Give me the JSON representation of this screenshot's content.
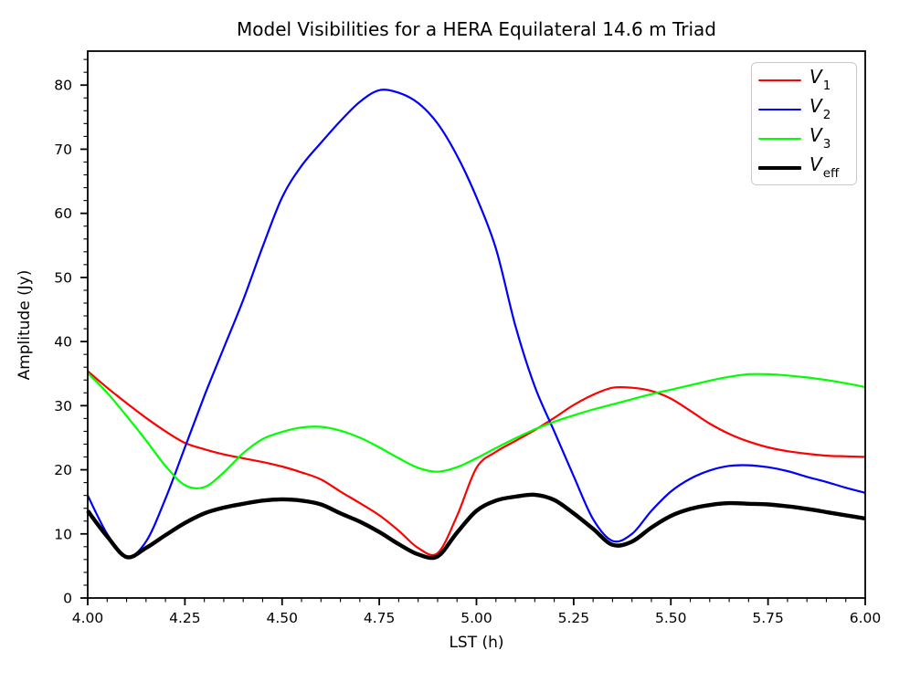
{
  "chart_data": {
    "type": "line",
    "title": "Model Visibilities for a HERA Equilateral 14.6 m Triad",
    "xlabel": "LST (h)",
    "ylabel": "Amplitude (Jy)",
    "xlim": [
      4.0,
      6.0
    ],
    "ylim": [
      0,
      85.3
    ],
    "grid": false,
    "legend_position": "upper right",
    "x_major_ticks": [
      4.0,
      4.25,
      4.5,
      4.75,
      5.0,
      5.25,
      5.5,
      5.75,
      6.0
    ],
    "x_tick_labels": [
      "4.00",
      "4.25",
      "4.50",
      "4.75",
      "5.00",
      "5.25",
      "5.50",
      "5.75",
      "6.00"
    ],
    "x_minor_step": 0.05,
    "y_major_ticks": [
      0,
      10,
      20,
      30,
      40,
      50,
      60,
      70,
      80
    ],
    "y_tick_labels": [
      "0",
      "10",
      "20",
      "30",
      "40",
      "50",
      "60",
      "70",
      "80"
    ],
    "y_minor_step": 2,
    "x": [
      4.0,
      4.05,
      4.1,
      4.15,
      4.2,
      4.25,
      4.3,
      4.35,
      4.4,
      4.45,
      4.5,
      4.55,
      4.6,
      4.65,
      4.7,
      4.75,
      4.8,
      4.85,
      4.9,
      4.95,
      5.0,
      5.05,
      5.1,
      5.15,
      5.2,
      5.25,
      5.3,
      5.35,
      5.4,
      5.45,
      5.5,
      5.55,
      5.6,
      5.65,
      5.7,
      5.75,
      5.8,
      5.85,
      5.9,
      5.95,
      6.0
    ],
    "series": [
      {
        "name": "v1",
        "label_main": "V",
        "label_sub": "1",
        "color": "#ff0000",
        "width": 2.2,
        "values": [
          35.4,
          32.8,
          30.4,
          28.1,
          26.0,
          24.2,
          23.2,
          22.4,
          21.8,
          21.2,
          20.5,
          19.6,
          18.5,
          16.6,
          14.8,
          12.9,
          10.5,
          7.8,
          7.0,
          12.8,
          20.3,
          22.8,
          24.5,
          26.2,
          28.1,
          30.1,
          31.7,
          32.8,
          32.8,
          32.3,
          31.1,
          29.2,
          27.2,
          25.6,
          24.4,
          23.5,
          22.9,
          22.5,
          22.2,
          22.1,
          22.0
        ]
      },
      {
        "name": "v2",
        "label_main": "V",
        "label_sub": "2",
        "color": "#0000ff",
        "width": 2.2,
        "values": [
          16.0,
          10.0,
          6.4,
          8.8,
          15.5,
          23.5,
          31.5,
          39.0,
          46.5,
          54.8,
          62.5,
          67.4,
          71.0,
          74.4,
          77.4,
          79.2,
          78.8,
          77.2,
          74.0,
          69.0,
          62.5,
          54.5,
          42.5,
          33.0,
          26.0,
          19.0,
          12.3,
          8.9,
          10.0,
          13.6,
          16.6,
          18.6,
          19.9,
          20.6,
          20.7,
          20.4,
          19.8,
          18.9,
          18.1,
          17.2,
          16.4
        ]
      },
      {
        "name": "v3",
        "label_main": "V",
        "label_sub": "3",
        "color": "#00ff00",
        "width": 2.2,
        "values": [
          35.1,
          32.0,
          28.4,
          24.6,
          20.6,
          17.6,
          17.3,
          19.6,
          22.6,
          24.8,
          25.9,
          26.6,
          26.7,
          26.1,
          25.0,
          23.5,
          21.8,
          20.3,
          19.7,
          20.4,
          21.8,
          23.4,
          24.9,
          26.3,
          27.5,
          28.5,
          29.4,
          30.2,
          31.0,
          31.8,
          32.5,
          33.2,
          33.9,
          34.5,
          34.9,
          34.9,
          34.7,
          34.4,
          34.0,
          33.5,
          32.9
        ]
      },
      {
        "name": "veff",
        "label_main": "V",
        "label_sub": "eff",
        "color": "#000000",
        "width": 4.4,
        "values": [
          13.6,
          9.6,
          6.4,
          7.8,
          9.8,
          11.7,
          13.2,
          14.1,
          14.7,
          15.2,
          15.4,
          15.2,
          14.6,
          13.2,
          11.9,
          10.3,
          8.4,
          6.8,
          6.5,
          10.2,
          13.6,
          15.2,
          15.8,
          16.1,
          15.3,
          13.2,
          10.8,
          8.3,
          8.8,
          11.0,
          12.8,
          13.9,
          14.5,
          14.8,
          14.7,
          14.6,
          14.3,
          13.9,
          13.4,
          12.9,
          12.4
        ]
      }
    ]
  }
}
